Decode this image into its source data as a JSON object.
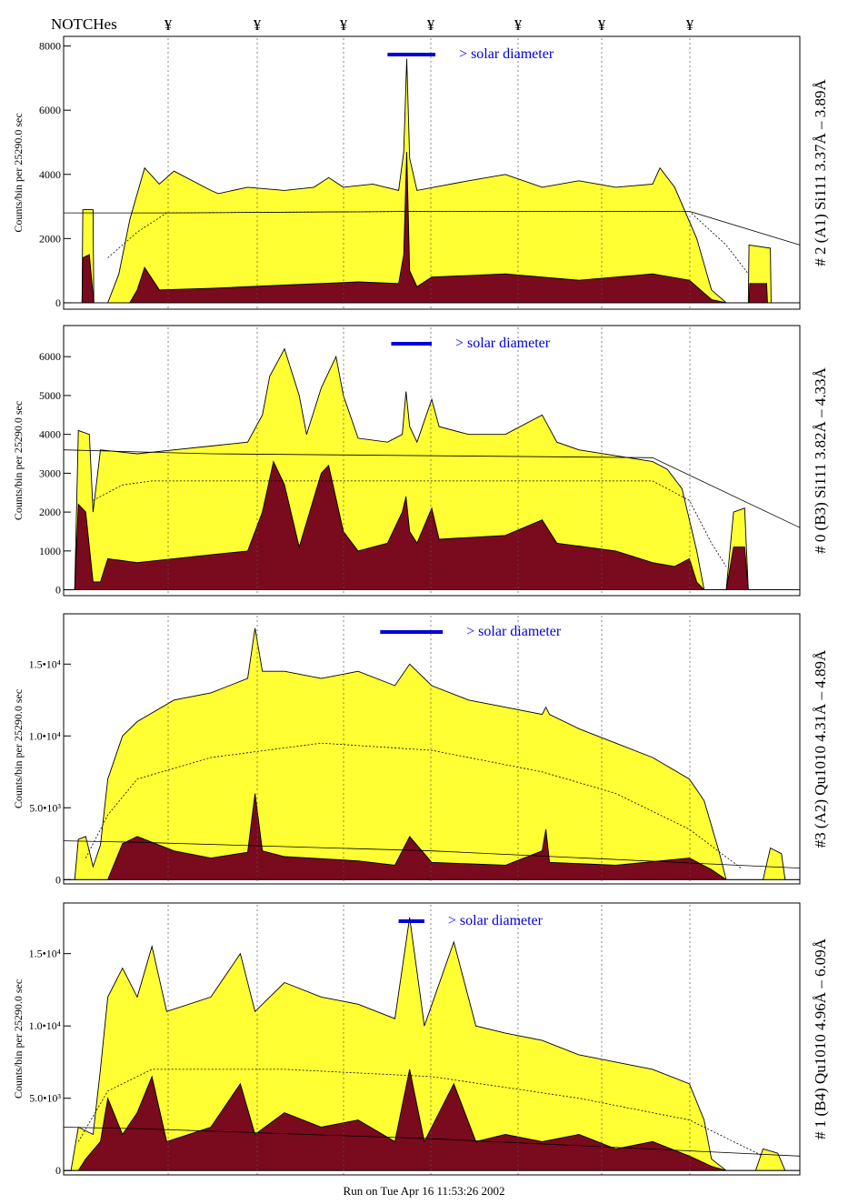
{
  "header": {
    "notches_label": "NOTCHes",
    "notch_symbol": "¥"
  },
  "footer": {
    "run_text": "Run on Tue Apr 16 11:53:26 2002"
  },
  "colors": {
    "spectrum_fill": "#ffff33",
    "background_fill": "#7a0a1e",
    "bar_indicator": "#0000dd",
    "annotation_blue": "#0000aa",
    "outline": "#000000"
  },
  "chart_data": [
    {
      "type": "area",
      "ylabel": "Counts/bin per  25290.0 sec",
      "side_label": "# 2 (A1) Si111  3.37Å – 3.89Å",
      "solar_label": "> solar diameter",
      "yticks": [
        {
          "v": 0,
          "t": "0"
        },
        {
          "v": 2000,
          "t": "2000"
        },
        {
          "v": 4000,
          "t": "4000"
        },
        {
          "v": 6000,
          "t": "6000"
        },
        {
          "v": 8000,
          "t": "8000"
        }
      ],
      "ylim": [
        -200,
        8300
      ],
      "solar_bar": [
        0.44,
        0.505
      ],
      "fg": [
        [
          0,
          0
        ],
        [
          0.025,
          0
        ],
        [
          0.026,
          2900
        ],
        [
          0.04,
          2900
        ],
        [
          0.041,
          0
        ],
        [
          0.06,
          0
        ],
        [
          0.075,
          900
        ],
        [
          0.09,
          2600
        ],
        [
          0.1,
          3400
        ],
        [
          0.11,
          4200
        ],
        [
          0.13,
          3700
        ],
        [
          0.15,
          4100
        ],
        [
          0.2,
          3500
        ],
        [
          0.21,
          3400
        ],
        [
          0.25,
          3600
        ],
        [
          0.3,
          3500
        ],
        [
          0.34,
          3600
        ],
        [
          0.36,
          3900
        ],
        [
          0.38,
          3600
        ],
        [
          0.42,
          3700
        ],
        [
          0.455,
          3500
        ],
        [
          0.462,
          4700
        ],
        [
          0.466,
          7600
        ],
        [
          0.47,
          4500
        ],
        [
          0.48,
          3500
        ],
        [
          0.55,
          3800
        ],
        [
          0.6,
          4000
        ],
        [
          0.65,
          3600
        ],
        [
          0.7,
          3800
        ],
        [
          0.75,
          3600
        ],
        [
          0.8,
          3700
        ],
        [
          0.81,
          4200
        ],
        [
          0.83,
          3600
        ],
        [
          0.86,
          2000
        ],
        [
          0.88,
          400
        ],
        [
          0.9,
          0
        ],
        [
          0.93,
          0
        ],
        [
          0.931,
          1800
        ],
        [
          0.96,
          1700
        ],
        [
          0.961,
          0
        ],
        [
          1,
          0
        ]
      ],
      "bg": [
        [
          0,
          0
        ],
        [
          0.025,
          0
        ],
        [
          0.026,
          1400
        ],
        [
          0.035,
          1500
        ],
        [
          0.041,
          0
        ],
        [
          0.09,
          0
        ],
        [
          0.1,
          400
        ],
        [
          0.11,
          1100
        ],
        [
          0.13,
          400
        ],
        [
          0.2,
          450
        ],
        [
          0.3,
          550
        ],
        [
          0.4,
          650
        ],
        [
          0.455,
          600
        ],
        [
          0.462,
          1500
        ],
        [
          0.466,
          4700
        ],
        [
          0.47,
          1000
        ],
        [
          0.48,
          500
        ],
        [
          0.5,
          800
        ],
        [
          0.6,
          900
        ],
        [
          0.7,
          700
        ],
        [
          0.8,
          900
        ],
        [
          0.85,
          700
        ],
        [
          0.88,
          100
        ],
        [
          0.9,
          0
        ],
        [
          0.931,
          0
        ],
        [
          0.932,
          600
        ],
        [
          0.955,
          600
        ],
        [
          0.956,
          0
        ],
        [
          1,
          0
        ]
      ],
      "dashed": [
        [
          0.06,
          1400
        ],
        [
          0.1,
          2200
        ],
        [
          0.14,
          2800
        ],
        [
          0.5,
          2850
        ],
        [
          0.85,
          2850
        ],
        [
          0.9,
          1800
        ],
        [
          0.93,
          900
        ]
      ],
      "solid": [
        [
          0,
          2800
        ],
        [
          0.15,
          2800
        ],
        [
          0.5,
          2850
        ],
        [
          0.85,
          2850
        ],
        [
          1,
          1800
        ]
      ]
    },
    {
      "type": "area",
      "ylabel": "Counts/bin per  25290.0 sec",
      "side_label": "# 0 (B3) Si111  3.82Å – 4.33Å",
      "solar_label": "> solar diameter",
      "yticks": [
        {
          "v": 0,
          "t": "0"
        },
        {
          "v": 1000,
          "t": "1000"
        },
        {
          "v": 2000,
          "t": "2000"
        },
        {
          "v": 3000,
          "t": "3000"
        },
        {
          "v": 4000,
          "t": "4000"
        },
        {
          "v": 5000,
          "t": "5000"
        },
        {
          "v": 6000,
          "t": "6000"
        }
      ],
      "ylim": [
        -150,
        6800
      ],
      "solar_bar": [
        0.445,
        0.5
      ],
      "fg": [
        [
          0,
          0
        ],
        [
          0.015,
          0
        ],
        [
          0.02,
          4100
        ],
        [
          0.035,
          4000
        ],
        [
          0.04,
          2000
        ],
        [
          0.05,
          3600
        ],
        [
          0.1,
          3500
        ],
        [
          0.15,
          3600
        ],
        [
          0.2,
          3700
        ],
        [
          0.25,
          3800
        ],
        [
          0.27,
          4500
        ],
        [
          0.28,
          5500
        ],
        [
          0.3,
          6200
        ],
        [
          0.32,
          5000
        ],
        [
          0.33,
          4000
        ],
        [
          0.35,
          5200
        ],
        [
          0.37,
          6000
        ],
        [
          0.38,
          5000
        ],
        [
          0.4,
          3900
        ],
        [
          0.44,
          3800
        ],
        [
          0.46,
          4000
        ],
        [
          0.465,
          5100
        ],
        [
          0.47,
          4200
        ],
        [
          0.48,
          3800
        ],
        [
          0.5,
          4900
        ],
        [
          0.51,
          4200
        ],
        [
          0.55,
          4000
        ],
        [
          0.6,
          4000
        ],
        [
          0.65,
          4500
        ],
        [
          0.67,
          3800
        ],
        [
          0.7,
          3600
        ],
        [
          0.8,
          3300
        ],
        [
          0.82,
          3100
        ],
        [
          0.84,
          2600
        ],
        [
          0.86,
          1000
        ],
        [
          0.87,
          0
        ],
        [
          0.9,
          0
        ],
        [
          0.91,
          2000
        ],
        [
          0.925,
          2100
        ],
        [
          0.93,
          0
        ],
        [
          1,
          0
        ]
      ],
      "bg": [
        [
          0,
          0
        ],
        [
          0.015,
          0
        ],
        [
          0.02,
          2200
        ],
        [
          0.03,
          2000
        ],
        [
          0.04,
          200
        ],
        [
          0.05,
          200
        ],
        [
          0.06,
          800
        ],
        [
          0.1,
          700
        ],
        [
          0.2,
          900
        ],
        [
          0.25,
          1000
        ],
        [
          0.27,
          2000
        ],
        [
          0.285,
          3300
        ],
        [
          0.3,
          2700
        ],
        [
          0.32,
          1100
        ],
        [
          0.35,
          3000
        ],
        [
          0.36,
          3200
        ],
        [
          0.38,
          1500
        ],
        [
          0.4,
          1000
        ],
        [
          0.44,
          1200
        ],
        [
          0.46,
          2000
        ],
        [
          0.465,
          2400
        ],
        [
          0.47,
          1500
        ],
        [
          0.48,
          1200
        ],
        [
          0.5,
          2100
        ],
        [
          0.51,
          1300
        ],
        [
          0.6,
          1400
        ],
        [
          0.65,
          1800
        ],
        [
          0.67,
          1200
        ],
        [
          0.75,
          1000
        ],
        [
          0.8,
          700
        ],
        [
          0.83,
          600
        ],
        [
          0.85,
          800
        ],
        [
          0.86,
          200
        ],
        [
          0.87,
          0
        ],
        [
          0.9,
          0
        ],
        [
          0.91,
          1100
        ],
        [
          0.925,
          1100
        ],
        [
          0.93,
          0
        ],
        [
          1,
          0
        ]
      ],
      "dashed": [
        [
          0.04,
          2300
        ],
        [
          0.08,
          2700
        ],
        [
          0.12,
          2800
        ],
        [
          0.5,
          2800
        ],
        [
          0.8,
          2800
        ],
        [
          0.85,
          2300
        ],
        [
          0.88,
          1200
        ],
        [
          0.9,
          600
        ]
      ],
      "solid": [
        [
          0,
          3600
        ],
        [
          0.2,
          3500
        ],
        [
          0.8,
          3400
        ],
        [
          1,
          1600
        ]
      ]
    },
    {
      "type": "area",
      "ylabel": "Counts/bin per  25290.0 sec",
      "side_label": "#3 (A2) Qu1010  4.31Å – 4.89Å",
      "solar_label": "> solar diameter",
      "yticks": [
        {
          "v": 0,
          "t": "0"
        },
        {
          "v": 5000,
          "t": "5.0•10³"
        },
        {
          "v": 10000,
          "t": "1.0•10⁴"
        },
        {
          "v": 15000,
          "t": "1.5•10⁴"
        }
      ],
      "ylim": [
        -300,
        18500
      ],
      "solar_bar": [
        0.43,
        0.515
      ],
      "fg": [
        [
          0,
          0
        ],
        [
          0.015,
          0
        ],
        [
          0.02,
          2800
        ],
        [
          0.03,
          3000
        ],
        [
          0.04,
          900
        ],
        [
          0.05,
          2400
        ],
        [
          0.06,
          7000
        ],
        [
          0.08,
          10000
        ],
        [
          0.1,
          11000
        ],
        [
          0.15,
          12500
        ],
        [
          0.2,
          13000
        ],
        [
          0.25,
          14000
        ],
        [
          0.26,
          17500
        ],
        [
          0.27,
          14500
        ],
        [
          0.3,
          14500
        ],
        [
          0.35,
          14000
        ],
        [
          0.4,
          14500
        ],
        [
          0.45,
          13500
        ],
        [
          0.47,
          15000
        ],
        [
          0.5,
          13500
        ],
        [
          0.55,
          12500
        ],
        [
          0.6,
          12000
        ],
        [
          0.65,
          11500
        ],
        [
          0.655,
          12000
        ],
        [
          0.66,
          11500
        ],
        [
          0.7,
          10500
        ],
        [
          0.75,
          9500
        ],
        [
          0.8,
          8500
        ],
        [
          0.85,
          7000
        ],
        [
          0.87,
          5500
        ],
        [
          0.89,
          2000
        ],
        [
          0.9,
          0
        ],
        [
          0.95,
          0
        ],
        [
          0.96,
          2200
        ],
        [
          0.975,
          1800
        ],
        [
          0.98,
          0
        ],
        [
          1,
          0
        ]
      ],
      "bg": [
        [
          0,
          0
        ],
        [
          0.06,
          0
        ],
        [
          0.08,
          2500
        ],
        [
          0.1,
          3000
        ],
        [
          0.15,
          2000
        ],
        [
          0.2,
          1500
        ],
        [
          0.25,
          1900
        ],
        [
          0.26,
          6000
        ],
        [
          0.27,
          2000
        ],
        [
          0.3,
          1600
        ],
        [
          0.4,
          1300
        ],
        [
          0.45,
          1000
        ],
        [
          0.47,
          3000
        ],
        [
          0.5,
          1200
        ],
        [
          0.6,
          1000
        ],
        [
          0.65,
          2000
        ],
        [
          0.655,
          3500
        ],
        [
          0.66,
          1200
        ],
        [
          0.75,
          1000
        ],
        [
          0.85,
          1500
        ],
        [
          0.88,
          700
        ],
        [
          0.9,
          0
        ],
        [
          1,
          0
        ]
      ],
      "dashed": [
        [
          0.03,
          1500
        ],
        [
          0.06,
          4500
        ],
        [
          0.1,
          7000
        ],
        [
          0.2,
          8500
        ],
        [
          0.35,
          9500
        ],
        [
          0.5,
          9000
        ],
        [
          0.65,
          7500
        ],
        [
          0.75,
          6000
        ],
        [
          0.85,
          3500
        ],
        [
          0.92,
          800
        ]
      ],
      "solid": [
        [
          0,
          2700
        ],
        [
          0.1,
          2600
        ],
        [
          0.5,
          2000
        ],
        [
          1,
          800
        ]
      ]
    },
    {
      "type": "area",
      "ylabel": "Counts/bin per  25290.0 sec",
      "side_label": "# 1 (B4) Qu1010 4.96Å – 6.09Å",
      "solar_label": "> solar diameter",
      "yticks": [
        {
          "v": 0,
          "t": "0"
        },
        {
          "v": 5000,
          "t": "5.0•10³"
        },
        {
          "v": 10000,
          "t": "1.0•10⁴"
        },
        {
          "v": 15000,
          "t": "1.5•10⁴"
        }
      ],
      "ylim": [
        -300,
        18500
      ],
      "solar_bar": [
        0.455,
        0.49
      ],
      "fg": [
        [
          0,
          0
        ],
        [
          0.01,
          0
        ],
        [
          0.02,
          3000
        ],
        [
          0.04,
          2500
        ],
        [
          0.05,
          7000
        ],
        [
          0.06,
          12000
        ],
        [
          0.08,
          14000
        ],
        [
          0.1,
          12000
        ],
        [
          0.12,
          15500
        ],
        [
          0.14,
          11000
        ],
        [
          0.2,
          12000
        ],
        [
          0.24,
          15000
        ],
        [
          0.26,
          11000
        ],
        [
          0.3,
          13000
        ],
        [
          0.35,
          12000
        ],
        [
          0.4,
          11500
        ],
        [
          0.45,
          10500
        ],
        [
          0.47,
          17500
        ],
        [
          0.49,
          10000
        ],
        [
          0.53,
          15800
        ],
        [
          0.56,
          10000
        ],
        [
          0.6,
          9500
        ],
        [
          0.65,
          9000
        ],
        [
          0.7,
          8000
        ],
        [
          0.75,
          7500
        ],
        [
          0.8,
          7000
        ],
        [
          0.85,
          6000
        ],
        [
          0.87,
          3500
        ],
        [
          0.88,
          800
        ],
        [
          0.9,
          0
        ],
        [
          0.94,
          0
        ],
        [
          0.95,
          1500
        ],
        [
          0.97,
          1200
        ],
        [
          0.98,
          0
        ],
        [
          1,
          0
        ]
      ],
      "bg": [
        [
          0,
          0
        ],
        [
          0.02,
          0
        ],
        [
          0.03,
          800
        ],
        [
          0.05,
          2000
        ],
        [
          0.06,
          5000
        ],
        [
          0.08,
          2500
        ],
        [
          0.1,
          4000
        ],
        [
          0.12,
          6500
        ],
        [
          0.14,
          2000
        ],
        [
          0.2,
          3000
        ],
        [
          0.24,
          6000
        ],
        [
          0.26,
          2500
        ],
        [
          0.3,
          4000
        ],
        [
          0.35,
          3000
        ],
        [
          0.4,
          3500
        ],
        [
          0.45,
          2000
        ],
        [
          0.47,
          7000
        ],
        [
          0.49,
          2000
        ],
        [
          0.53,
          6000
        ],
        [
          0.56,
          2000
        ],
        [
          0.6,
          2500
        ],
        [
          0.65,
          2000
        ],
        [
          0.7,
          2500
        ],
        [
          0.75,
          1500
        ],
        [
          0.8,
          2000
        ],
        [
          0.85,
          1000
        ],
        [
          0.88,
          300
        ],
        [
          0.9,
          0
        ],
        [
          1,
          0
        ]
      ],
      "dashed": [
        [
          0.02,
          2000
        ],
        [
          0.06,
          5500
        ],
        [
          0.12,
          7000
        ],
        [
          0.3,
          7000
        ],
        [
          0.5,
          6500
        ],
        [
          0.7,
          5000
        ],
        [
          0.85,
          3500
        ],
        [
          0.95,
          1000
        ]
      ],
      "solid": [
        [
          0,
          3000
        ],
        [
          0.1,
          2900
        ],
        [
          0.5,
          2200
        ],
        [
          1,
          1000
        ]
      ]
    }
  ]
}
